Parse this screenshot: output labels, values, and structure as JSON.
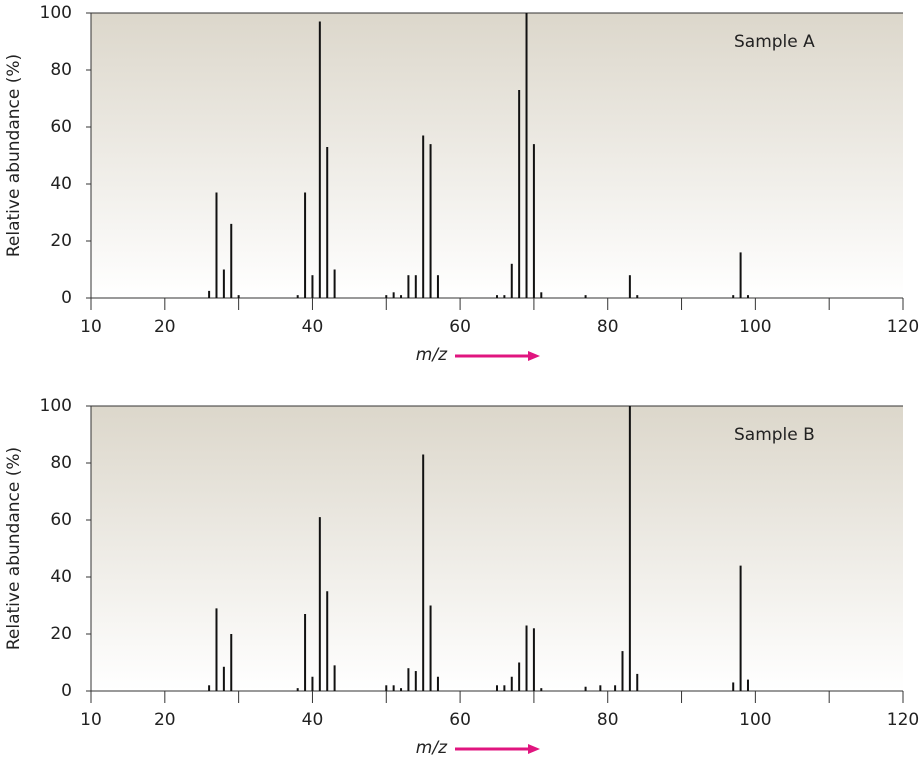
{
  "chart_data": [
    {
      "type": "stem",
      "title": "Sample A",
      "y_label": "Relative abundance (%)",
      "x_label": "m/z",
      "color": "#111111",
      "x": [
        26,
        27,
        28,
        29,
        30,
        38,
        39,
        40,
        41,
        42,
        43,
        50,
        51,
        52,
        53,
        54,
        55,
        56,
        57,
        65,
        66,
        67,
        68,
        69,
        70,
        71,
        77,
        83,
        84,
        97,
        98,
        99
      ],
      "values": [
        2.5,
        37,
        10,
        26,
        1,
        1,
        37,
        8,
        97,
        53,
        10,
        1,
        2,
        1,
        8,
        8,
        57,
        54,
        8,
        1,
        1,
        12,
        73,
        100,
        54,
        2,
        1,
        8,
        1,
        1,
        16,
        1
      ],
      "xlim": [
        10,
        120
      ],
      "xticks": [
        10,
        20,
        40,
        60,
        80,
        100,
        120
      ],
      "xminorticks": [
        30,
        50,
        70,
        90,
        110
      ],
      "ylim": [
        0,
        100
      ],
      "yticks": [
        0,
        20,
        40,
        60,
        80,
        100
      ]
    },
    {
      "type": "stem",
      "title": "Sample B",
      "y_label": "Relative abundance (%)",
      "x_label": "m/z",
      "color": "#111111",
      "x": [
        26,
        27,
        28,
        29,
        38,
        39,
        40,
        41,
        42,
        43,
        50,
        51,
        52,
        53,
        54,
        55,
        56,
        57,
        65,
        66,
        67,
        68,
        69,
        70,
        71,
        77,
        79,
        81,
        82,
        83,
        84,
        97,
        98,
        99
      ],
      "values": [
        2,
        29,
        8.5,
        20,
        1,
        27,
        5,
        61,
        35,
        9,
        2,
        2,
        1,
        8,
        7,
        83,
        30,
        5,
        2,
        2,
        5,
        10,
        23,
        22,
        1,
        1.5,
        2,
        2,
        14,
        100,
        6,
        3,
        44,
        4
      ],
      "xlim": [
        10,
        120
      ],
      "xticks": [
        10,
        20,
        40,
        60,
        80,
        100,
        120
      ],
      "xminorticks": [
        30,
        50,
        70,
        90,
        110
      ],
      "ylim": [
        0,
        100
      ],
      "yticks": [
        0,
        20,
        40,
        60,
        80,
        100
      ]
    }
  ]
}
